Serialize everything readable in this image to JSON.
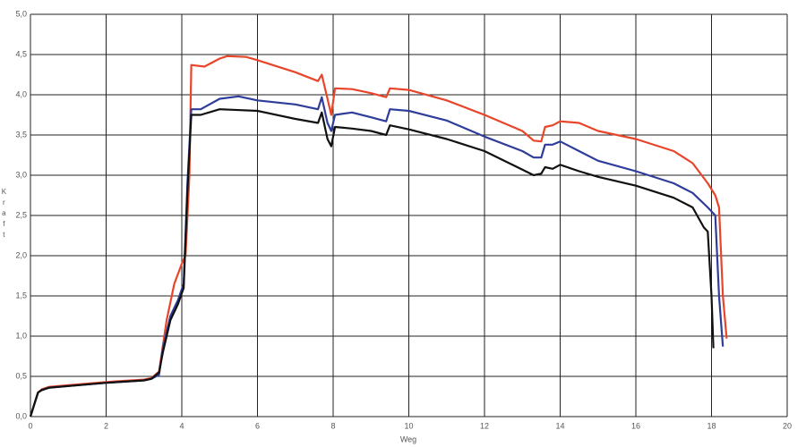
{
  "chart_data": {
    "type": "line",
    "x_label": "Weg",
    "y_label": "Kraft",
    "xlim": [
      0,
      20
    ],
    "xticks": [
      0,
      2,
      4,
      6,
      8,
      10,
      12,
      14,
      16,
      18,
      20
    ],
    "ylim": [
      0,
      5
    ],
    "yticks": [
      {
        "value": 0,
        "label": "0,0"
      },
      {
        "value": 0.5,
        "label": "0,5"
      },
      {
        "value": 1,
        "label": "1,0"
      },
      {
        "value": 1.5,
        "label": "1,5"
      },
      {
        "value": 2,
        "label": "2,0"
      },
      {
        "value": 2.5,
        "label": "2,5"
      },
      {
        "value": 3,
        "label": "3,0"
      },
      {
        "value": 3.5,
        "label": "3,5"
      },
      {
        "value": 4,
        "label": "4,0"
      },
      {
        "value": 4.5,
        "label": "4,5"
      },
      {
        "value": 5,
        "label": "5,0"
      }
    ],
    "grid": true,
    "series": [
      {
        "color": "#e8452a",
        "x": [
          0,
          0.1,
          0.2,
          0.3,
          0.5,
          1,
          2,
          3,
          3.2,
          3.4,
          3.6,
          3.8,
          4.0,
          4.1,
          4.2,
          4.25,
          4.6,
          5,
          5.2,
          5.7,
          6,
          7,
          7.6,
          7.7,
          7.85,
          7.95,
          8.05,
          8.5,
          9,
          9.4,
          9.5,
          10,
          11,
          12,
          13,
          13.3,
          13.5,
          13.6,
          13.8,
          14,
          14.5,
          15,
          16,
          17,
          17.5,
          17.9,
          18.1,
          18.2,
          18.3,
          18.4
        ],
        "values": [
          0,
          0.15,
          0.3,
          0.34,
          0.37,
          0.39,
          0.43,
          0.46,
          0.48,
          0.56,
          1.2,
          1.65,
          1.9,
          2.0,
          3.0,
          4.37,
          4.35,
          4.45,
          4.48,
          4.47,
          4.43,
          4.28,
          4.17,
          4.25,
          3.95,
          3.75,
          4.08,
          4.07,
          4.02,
          3.97,
          4.08,
          4.06,
          3.93,
          3.75,
          3.55,
          3.43,
          3.42,
          3.6,
          3.62,
          3.67,
          3.65,
          3.55,
          3.45,
          3.3,
          3.15,
          2.9,
          2.75,
          2.6,
          1.5,
          0.97
        ]
      },
      {
        "color": "#2e3d9a",
        "x": [
          0,
          0.1,
          0.2,
          0.3,
          0.5,
          1,
          2,
          3,
          3.2,
          3.4,
          3.5,
          3.7,
          3.9,
          4.05,
          4.15,
          4.25,
          4.5,
          5,
          5.5,
          6,
          7,
          7.6,
          7.7,
          7.85,
          7.95,
          8.05,
          8.5,
          9,
          9.4,
          9.5,
          10,
          11,
          12,
          13,
          13.3,
          13.5,
          13.6,
          13.8,
          14,
          14.5,
          15,
          16,
          17,
          17.5,
          17.9,
          18.1,
          18.2,
          18.3
        ],
        "values": [
          0,
          0.15,
          0.3,
          0.33,
          0.36,
          0.38,
          0.42,
          0.45,
          0.47,
          0.52,
          0.85,
          1.25,
          1.45,
          1.65,
          2.9,
          3.82,
          3.82,
          3.95,
          3.98,
          3.93,
          3.88,
          3.82,
          3.97,
          3.65,
          3.55,
          3.75,
          3.78,
          3.72,
          3.67,
          3.82,
          3.8,
          3.68,
          3.48,
          3.3,
          3.22,
          3.22,
          3.38,
          3.38,
          3.42,
          3.3,
          3.18,
          3.05,
          2.9,
          2.78,
          2.6,
          2.5,
          1.5,
          0.87
        ]
      },
      {
        "color": "#111111",
        "x": [
          0,
          0.1,
          0.2,
          0.3,
          0.5,
          1,
          2,
          3,
          3.2,
          3.4,
          3.5,
          3.7,
          3.9,
          4.05,
          4.15,
          4.25,
          4.5,
          5,
          6,
          7,
          7.6,
          7.7,
          7.85,
          7.95,
          8.05,
          8.5,
          9,
          9.4,
          9.5,
          10,
          11,
          12,
          13,
          13.3,
          13.5,
          13.6,
          13.8,
          14,
          14.5,
          15,
          16,
          17,
          17.5,
          17.8,
          17.9,
          18.0,
          18.05
        ],
        "values": [
          0,
          0.15,
          0.3,
          0.33,
          0.36,
          0.38,
          0.42,
          0.45,
          0.47,
          0.55,
          0.8,
          1.2,
          1.4,
          1.6,
          2.8,
          3.75,
          3.75,
          3.82,
          3.8,
          3.7,
          3.65,
          3.78,
          3.45,
          3.36,
          3.6,
          3.58,
          3.55,
          3.5,
          3.62,
          3.57,
          3.45,
          3.3,
          3.07,
          3.0,
          3.02,
          3.1,
          3.08,
          3.13,
          3.05,
          2.98,
          2.87,
          2.72,
          2.6,
          2.35,
          2.3,
          1.5,
          0.85
        ]
      }
    ]
  }
}
